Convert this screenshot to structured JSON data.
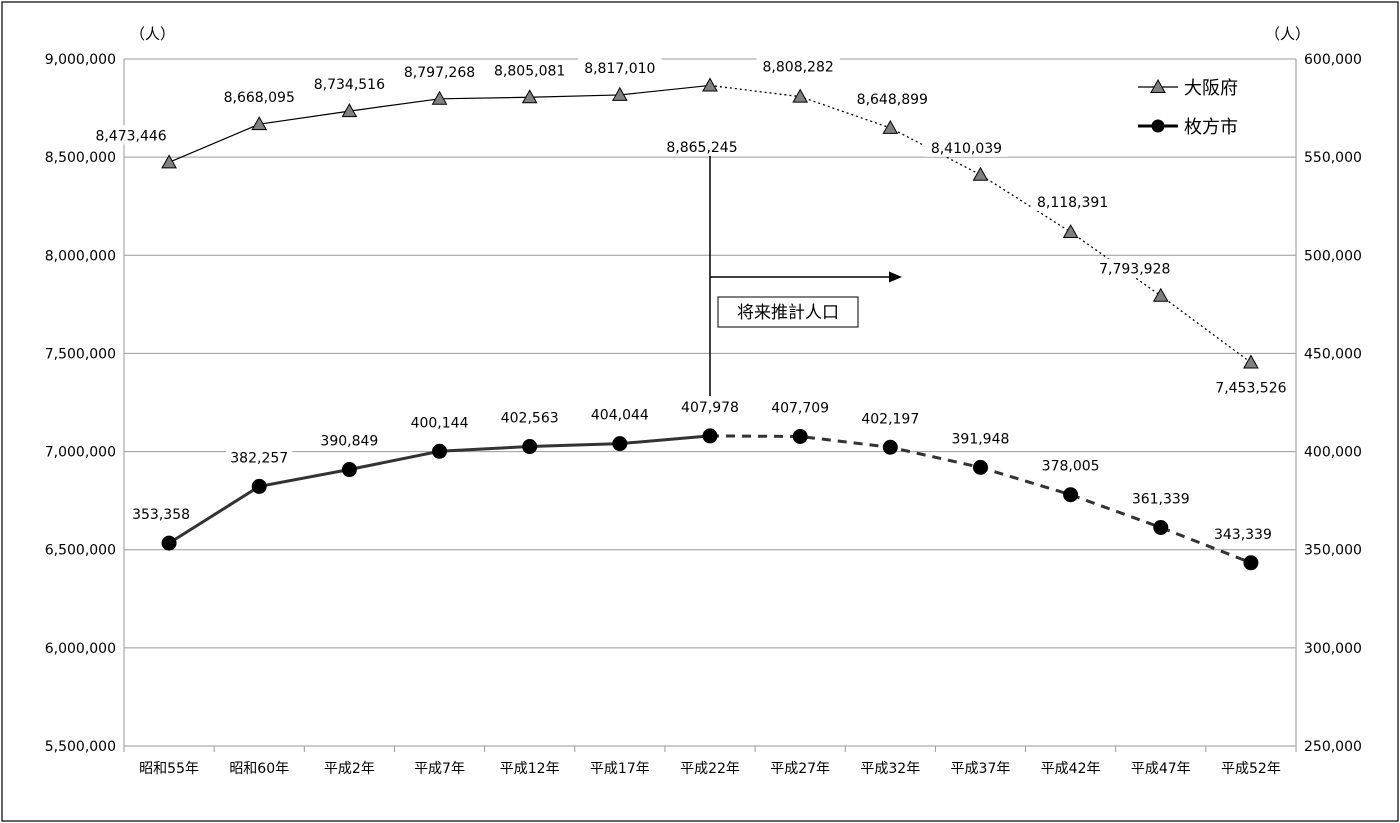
{
  "chart_data": {
    "type": "line",
    "categories": [
      "昭和55年",
      "昭和60年",
      "平成2年",
      "平成7年",
      "平成12年",
      "平成17年",
      "平成22年",
      "平成27年",
      "平成32年",
      "平成37年",
      "平成42年",
      "平成47年",
      "平成52年"
    ],
    "left_axis": {
      "unit": "（人）",
      "ylim": [
        5500000,
        9000000
      ],
      "ticks": [
        "5,500,000",
        "6,000,000",
        "6,500,000",
        "7,000,000",
        "7,500,000",
        "8,000,000",
        "8,500,000",
        "9,000,000"
      ],
      "tick_values": [
        5500000,
        6000000,
        6500000,
        7000000,
        7500000,
        8000000,
        8500000,
        9000000
      ]
    },
    "right_axis": {
      "unit": "（人）",
      "ylim": [
        250000,
        600000
      ],
      "ticks": [
        "250,000",
        "300,000",
        "350,000",
        "400,000",
        "450,000",
        "500,000",
        "550,000",
        "600,000"
      ],
      "tick_values": [
        250000,
        300000,
        350000,
        400000,
        450000,
        500000,
        550000,
        600000
      ]
    },
    "grid": true,
    "legend_position": "top-right",
    "projection_start_index": 6,
    "annotation": "将来推計人口",
    "series": [
      {
        "name": "大阪府",
        "axis": "left",
        "marker": "triangle",
        "color": "#808080",
        "values": [
          8473446,
          8668095,
          8734516,
          8797268,
          8805081,
          8817010,
          8865245,
          8808282,
          8648899,
          8410039,
          8118391,
          7793928,
          7453526
        ],
        "labels": [
          "8,473,446",
          "8,668,095",
          "8,734,516",
          "8,797,268",
          "8,805,081",
          "8,817,010",
          "8,865,245",
          "8,808,282",
          "8,648,899",
          "8,410,039",
          "8,118,391",
          "7,793,928",
          "7,453,526"
        ]
      },
      {
        "name": "枚方市",
        "axis": "right",
        "marker": "circle",
        "color": "#000000",
        "values": [
          353358,
          382257,
          390849,
          400144,
          402563,
          404044,
          407978,
          407709,
          402197,
          391948,
          378005,
          361339,
          343339
        ],
        "labels": [
          "353,358",
          "382,257",
          "390,849",
          "400,144",
          "402,563",
          "404,044",
          "407,978",
          "407,709",
          "402,197",
          "391,948",
          "378,005",
          "361,339",
          "343,339"
        ]
      }
    ]
  }
}
